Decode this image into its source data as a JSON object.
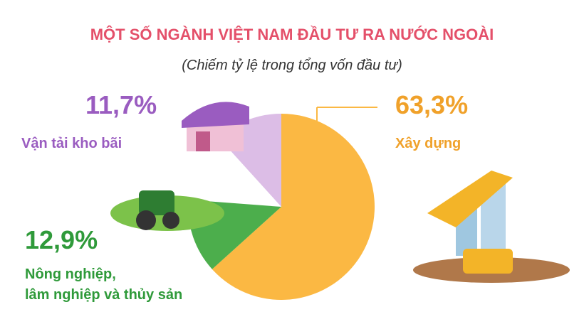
{
  "chart_data": {
    "type": "pie",
    "title": "MỘT SỐ NGÀNH VIỆT NAM ĐẦU TƯ RA NƯỚC NGOÀI",
    "subtitle": "(Chiếm tỷ lệ trong tổng vốn đầu tư)",
    "series": [
      {
        "name": [
          "Xây dựng"
        ],
        "color": "#fbb843",
        "values": [
          63.3
        ],
        "value_labels": [
          "63,3%"
        ],
        "label_color": "#f0a12a"
      },
      {
        "name": [
          "Nông nghiệp,",
          "lâm nghiệp và thủy sản"
        ],
        "color": "#4cae4c",
        "values": [
          12.9
        ],
        "value_labels": [
          "12,9%"
        ],
        "label_color": "#2f9a3a"
      },
      {
        "name": [
          "Vận tải kho bãi"
        ],
        "color": "#dcbde6",
        "values": [
          11.7
        ],
        "value_labels": [
          "11,7%"
        ],
        "label_color": "#9a5cc0"
      }
    ]
  }
}
